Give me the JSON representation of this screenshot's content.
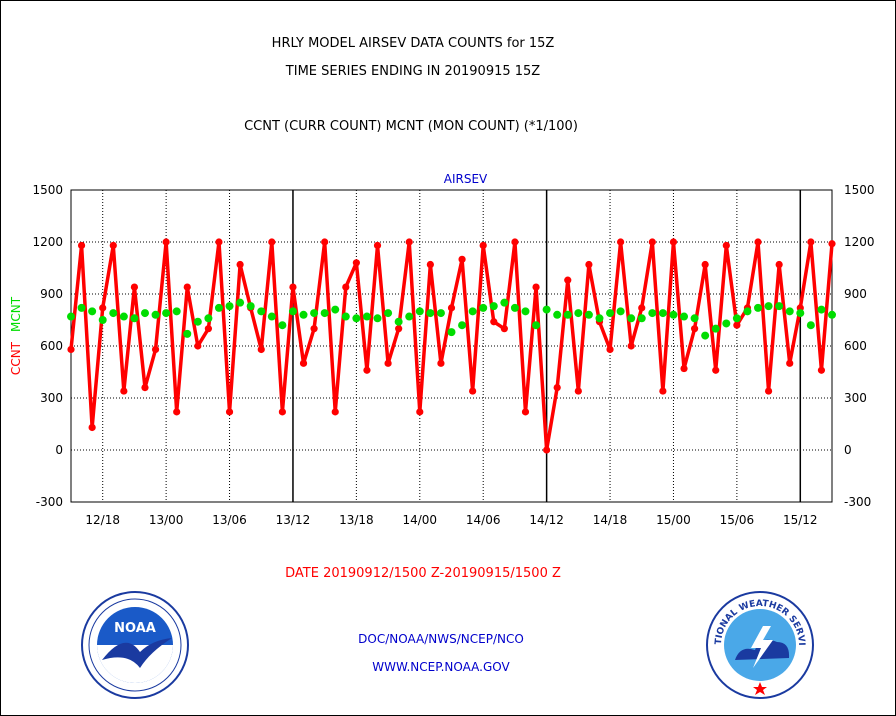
{
  "header": {
    "title_line1": "HRLY MODEL AIRSEV DATA COUNTS for 15Z",
    "title_line2": "TIME SERIES ENDING IN 20190915 15Z",
    "subtitle": "CCNT (CURR COUNT) MCNT (MON COUNT) (*1/100)"
  },
  "footer": {
    "date_range": "DATE 20190912/1500 Z-20190915/1500 Z",
    "org": "DOC/NOAA/NWS/NCEP/NCO",
    "url": "WWW.NCEP.NOAA.GOV"
  },
  "logos": {
    "noaa_text": "NOAA",
    "nws_text": "NATIONAL WEATHER SERVICE"
  },
  "colors": {
    "ccnt": "#ff0000",
    "mcnt": "#00dd00",
    "label_blue": "#0000cc",
    "grid": "#000000"
  },
  "chart_data": {
    "type": "line",
    "title": "AIRSEV",
    "ylabel_left_ccnt": "CCNT",
    "ylabel_left_mcnt": "MCNT",
    "ylim": [
      -300,
      1500
    ],
    "yticks": [
      -300,
      0,
      300,
      600,
      900,
      1200,
      1500
    ],
    "xlim": [
      0,
      72
    ],
    "x_tick_labels": [
      {
        "x": 3,
        "label": "12/18"
      },
      {
        "x": 9,
        "label": "13/00"
      },
      {
        "x": 15,
        "label": "13/06"
      },
      {
        "x": 21,
        "label": "13/12"
      },
      {
        "x": 27,
        "label": "13/18"
      },
      {
        "x": 33,
        "label": "14/00"
      },
      {
        "x": 39,
        "label": "14/06"
      },
      {
        "x": 45,
        "label": "14/12"
      },
      {
        "x": 51,
        "label": "14/18"
      },
      {
        "x": 57,
        "label": "15/00"
      },
      {
        "x": 63,
        "label": "15/06"
      },
      {
        "x": 69,
        "label": "15/12"
      }
    ],
    "day_boundaries_x": [
      21,
      45,
      69
    ],
    "grid": true,
    "series": [
      {
        "name": "CCNT",
        "values": [
          580,
          1180,
          130,
          820,
          1180,
          340,
          940,
          360,
          580,
          1200,
          220,
          940,
          600,
          700,
          1200,
          220,
          1070,
          820,
          580,
          1200,
          220,
          940,
          500,
          700,
          1200,
          220,
          940,
          1080,
          460,
          1180,
          500,
          700,
          1200,
          220,
          1070,
          500,
          820,
          1100,
          340,
          1180,
          740,
          700,
          1200,
          220,
          940,
          0,
          360,
          980,
          340,
          1070,
          740,
          580,
          1200,
          600,
          820,
          1200,
          340,
          1200,
          470,
          700,
          1070,
          460,
          1180,
          720,
          820,
          1200,
          340,
          1070,
          500,
          820,
          1200,
          460,
          1190
        ]
      },
      {
        "name": "MCNT",
        "values": [
          770,
          820,
          800,
          750,
          790,
          770,
          760,
          790,
          780,
          790,
          800,
          670,
          740,
          760,
          820,
          830,
          850,
          830,
          800,
          770,
          720,
          800,
          780,
          790,
          790,
          810,
          770,
          760,
          770,
          760,
          790,
          740,
          770,
          800,
          790,
          790,
          680,
          720,
          800,
          820,
          830,
          850,
          820,
          800,
          720,
          810,
          780,
          780,
          790,
          780,
          760,
          790,
          800,
          760,
          760,
          790,
          790,
          780,
          770,
          760,
          660,
          700,
          730,
          760,
          800,
          820,
          830,
          830,
          800,
          790,
          720,
          810,
          780
        ]
      }
    ]
  }
}
